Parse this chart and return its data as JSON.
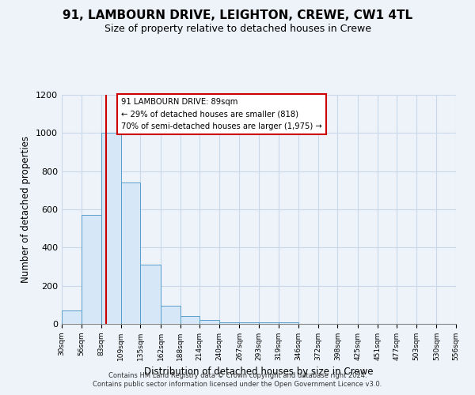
{
  "title": "91, LAMBOURN DRIVE, LEIGHTON, CREWE, CW1 4TL",
  "subtitle": "Size of property relative to detached houses in Crewe",
  "xlabel": "Distribution of detached houses by size in Crewe",
  "ylabel": "Number of detached properties",
  "bin_edges": [
    30,
    56,
    83,
    109,
    135,
    162,
    188,
    214,
    240,
    267,
    293,
    319,
    346,
    372,
    398,
    425,
    451,
    477,
    503,
    530,
    556
  ],
  "bin_heights": [
    70,
    570,
    1000,
    740,
    310,
    95,
    40,
    20,
    10,
    10,
    10,
    10,
    0,
    0,
    0,
    0,
    0,
    0,
    0,
    0
  ],
  "bar_facecolor": "#d6e8f7",
  "bar_edgecolor": "#5a9ec9",
  "vline_x": 89,
  "vline_color": "#cc0000",
  "ylim": [
    0,
    1200
  ],
  "yticks": [
    0,
    200,
    400,
    600,
    800,
    1000,
    1200
  ],
  "ann_line1": "91 LAMBOURN DRIVE: 89sqm",
  "ann_line2": "← 29% of detached houses are smaller (818)",
  "ann_line3": "70% of semi-detached houses are larger (1,975) →",
  "footer1": "Contains HM Land Registry data © Crown copyright and database right 2024.",
  "footer2": "Contains public sector information licensed under the Open Government Licence v3.0.",
  "background_color": "#eef3f9",
  "plot_bg_color": "#eef3f9",
  "grid_color": "#c8d8e8"
}
